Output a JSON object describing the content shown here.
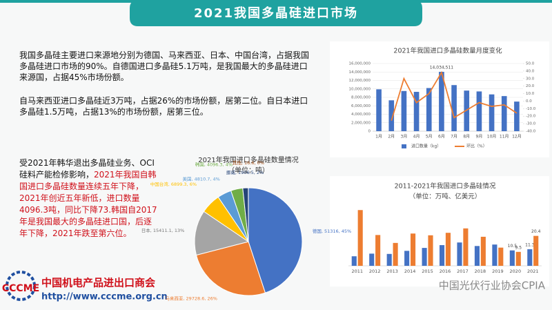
{
  "header": {
    "title": "2021我国多晶硅进口市场"
  },
  "text": {
    "p1": "我国多晶硅主要进口来源地分别为德国、马来西亚、日本、中国台湾，占据我国多晶硅进口市场的90%。自德国进口多晶硅5.1万吨，是我国最大的多晶硅进口来源国，占据45%市场份额。",
    "p2": "自马来西亚进口多晶硅近3万吨，占据26%的市场份额，居第二位。自日本进口多晶硅1.5万吨，占据13%的市场份额，居第三位。",
    "p3": "受2021年韩华退出多晶硅业务、OCI硅料产能检修影响，",
    "p3_highlight": "2021年我国自韩国进口多晶硅数量连续五年下降，2021年创近五年新低，进口数量4096.3吨，同比下降73.韩国自2017年是我国最大的多晶硅进口国，后逐年下降，2021年跌至第六位。"
  },
  "logo": {
    "abbr": "CCCME",
    "name": "中国机电产品进出口商会",
    "url": "http://www.cccme.org.cn"
  },
  "watermark": "中国光伏行业协会CPIA",
  "chart_data": [
    {
      "type": "bar",
      "title": "2021年我国进口多晶硅数量月度变化",
      "categories": [
        "1月",
        "2月",
        "3月",
        "4月",
        "5月",
        "6月",
        "7月",
        "8月",
        "9月",
        "10月",
        "11月",
        "12月"
      ],
      "series": [
        {
          "name": "进口数量（kg）",
          "color": "#4472c4",
          "values": [
            9900000,
            7300000,
            9500000,
            9300000,
            10200000,
            14034511,
            10900000,
            9600000,
            9400000,
            8700000,
            8300000,
            7000000
          ],
          "value_labels": [
            null,
            null,
            null,
            null,
            null,
            "14,034,511",
            null,
            null,
            null,
            null,
            null,
            null
          ]
        },
        {
          "name": "环比（%）",
          "color": "#ed7d31",
          "axis": "y2",
          "type": "line",
          "values": [
            null,
            -26,
            30,
            -2,
            10,
            38,
            -22,
            -12,
            -2,
            -7,
            -5,
            -16
          ]
        }
      ],
      "ylim": [
        0,
        16000000
      ],
      "yticks": [
        0,
        {
          "value": 2000000,
          "label": "2,000,000"
        },
        {
          "value": 4000000,
          "label": "4,000,000"
        },
        {
          "value": 6000000,
          "label": "6,000,000"
        },
        {
          "value": 8000000,
          "label": "8,000,000"
        },
        {
          "value": 10000000,
          "label": "10,000,000"
        },
        {
          "value": 12000000,
          "label": "12,000,000"
        },
        {
          "value": 14000000,
          "label": "14,000,000"
        },
        {
          "value": 16000000,
          "label": "16,000,000"
        }
      ],
      "y2lim": [
        -40,
        50
      ],
      "y2ticks": [
        {
          "value": -40,
          "label": "-40.0"
        },
        {
          "value": -30,
          "label": "-30.0"
        },
        {
          "value": -20,
          "label": "-20.0"
        },
        {
          "value": -10,
          "label": "-10.0"
        },
        {
          "value": 0,
          "label": "0.0"
        },
        {
          "value": 10,
          "label": "10.0"
        },
        {
          "value": 20,
          "label": "20.0"
        },
        {
          "value": 30,
          "label": "30.0"
        },
        {
          "value": 40,
          "label": "40.0"
        },
        {
          "value": 50,
          "label": "50.0"
        }
      ],
      "grid": true,
      "legend": "bottom"
    },
    {
      "type": "pie",
      "title": "2021年我国进口多晶硅数量情况",
      "subtitle": "（单位：吨）",
      "categories": [
        "德国",
        "马来西亚",
        "日本",
        "中国台湾",
        "美国",
        "韩国",
        "挪威",
        "其他"
      ],
      "values": [
        51316,
        29728.6,
        15411.1,
        6899.3,
        4810.7,
        4096.3,
        1906.5,
        16.6
      ],
      "value_labels": [
        "德国, 51316, 45%",
        "马来西亚, 29728.6, 26%",
        "日本, 15411.1, 13%",
        "中国台湾, 6899.3, 6%",
        "美国, 4810.7, 4%",
        "韩国, 4096.3, 4%",
        "挪威, 1906.5, 2%",
        "其他, 16.6, 0%"
      ],
      "colors": [
        "#4472c4",
        "#ed7d31",
        "#a5a5a5",
        "#ffc000",
        "#5b9bd5",
        "#70ad47",
        "#264478",
        "#9e480e"
      ]
    },
    {
      "type": "bar",
      "title": "2011-2021年我国进口多晶硅情况",
      "subtitle": "（单位：万吨、亿美元）",
      "categories": [
        "2011",
        "2012",
        "2013",
        "2014",
        "2015",
        "2016",
        "2017",
        "2018",
        "2019",
        "2020",
        "2021"
      ],
      "series": [
        {
          "color": "#4472c4",
          "values": [
            6.5,
            8.3,
            8.1,
            10.2,
            12.2,
            14.1,
            15.9,
            13.5,
            14.5,
            10.5,
            11.3
          ],
          "value_labels": [
            null,
            null,
            null,
            null,
            null,
            null,
            null,
            null,
            null,
            "10.5",
            "11.3"
          ]
        },
        {
          "color": "#ed7d31",
          "values": [
            38,
            21,
            15.6,
            22,
            20.8,
            22.5,
            25.5,
            19.8,
            12.4,
            9.5,
            20.4
          ],
          "value_labels": [
            null,
            null,
            null,
            null,
            null,
            null,
            null,
            null,
            null,
            "9.5",
            "20.4"
          ]
        }
      ],
      "ylim": [
        0,
        40
      ],
      "grid": false
    }
  ]
}
